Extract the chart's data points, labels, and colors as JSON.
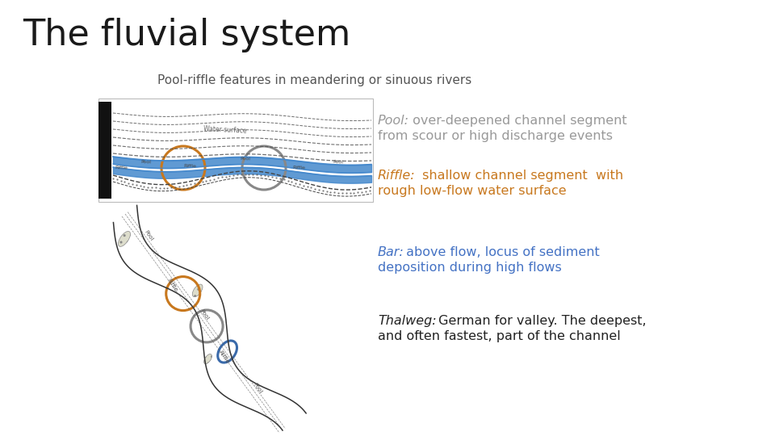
{
  "title": "The fluvial system",
  "subtitle": "Pool-riffle features in meandering or sinuous rivers",
  "title_fontsize": 32,
  "subtitle_fontsize": 11,
  "bg_color": "#ffffff",
  "title_color": "#1a1a1a",
  "subtitle_color": "#555555",
  "pool_text_color": "#999999",
  "riffle_text_color": "#c8781e",
  "bar_text_color": "#4472c4",
  "thalweg_text_color": "#222222",
  "pool_label": "Pool:",
  "pool_desc1": " over-deepened channel segment",
  "pool_desc2": "from scour or high discharge events",
  "riffle_label": "Riffle:",
  "riffle_desc1": " shallow channel segment  with",
  "riffle_desc2": "rough low-flow water surface",
  "bar_label": "Bar:",
  "bar_desc1": " above flow, locus of sediment",
  "bar_desc2": "deposition during high flows",
  "thalweg_label": "Thalweg:",
  "thalweg_desc1": " German for valley. The deepest,",
  "thalweg_desc2": "and often fastest, part of the channel",
  "circle_orange_color": "#c8781e",
  "circle_gray_color": "#888888",
  "circle_blue_color": "#3a6aaa",
  "river_blue": "#4488cc",
  "annotation_fontsize": 11.5
}
